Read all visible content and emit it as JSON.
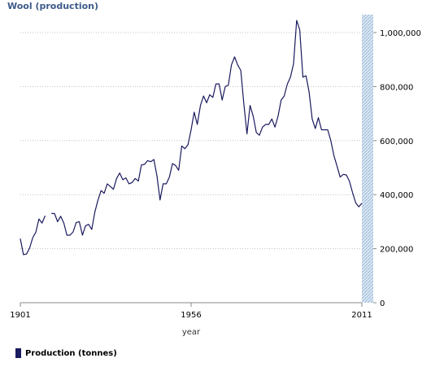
{
  "chart_data": {
    "type": "line",
    "title": "Wool (production)",
    "xlabel": "year",
    "ylabel": "",
    "x_tick_labels": [
      "1901",
      "1956",
      "2011"
    ],
    "y_tick_labels": [
      "0",
      "200,000",
      "400,000",
      "600,000",
      "800,000",
      "1,000,000"
    ],
    "xlim": [
      1901,
      2011
    ],
    "ylim": [
      0,
      1000000
    ],
    "grid": true,
    "legend_position": "bottom-left",
    "series": [
      {
        "name": "Production (tonnes)",
        "color": "#1a1a5e",
        "points": [
          [
            1901,
            237000
          ],
          [
            1902,
            178000
          ],
          [
            1903,
            180000
          ],
          [
            1904,
            203000
          ],
          [
            1905,
            241000
          ],
          [
            1906,
            261000
          ],
          [
            1907,
            310000
          ],
          [
            1908,
            295000
          ],
          [
            1909,
            322000
          ],
          [
            1911,
            330000
          ],
          [
            1912,
            330000
          ],
          [
            1913,
            300000
          ],
          [
            1914,
            320000
          ],
          [
            1915,
            295000
          ],
          [
            1916,
            250000
          ],
          [
            1917,
            250000
          ],
          [
            1918,
            262000
          ],
          [
            1919,
            297000
          ],
          [
            1920,
            300000
          ],
          [
            1921,
            250000
          ],
          [
            1922,
            285000
          ],
          [
            1923,
            290000
          ],
          [
            1924,
            271000
          ],
          [
            1925,
            335000
          ],
          [
            1926,
            380000
          ],
          [
            1927,
            415000
          ],
          [
            1928,
            405000
          ],
          [
            1929,
            440000
          ],
          [
            1930,
            430000
          ],
          [
            1931,
            420000
          ],
          [
            1932,
            460000
          ],
          [
            1933,
            480000
          ],
          [
            1934,
            455000
          ],
          [
            1935,
            462000
          ],
          [
            1936,
            440000
          ],
          [
            1937,
            445000
          ],
          [
            1938,
            460000
          ],
          [
            1939,
            450000
          ],
          [
            1940,
            510000
          ],
          [
            1941,
            512000
          ],
          [
            1942,
            526000
          ],
          [
            1943,
            522000
          ],
          [
            1944,
            530000
          ],
          [
            1945,
            470000
          ],
          [
            1946,
            380000
          ],
          [
            1947,
            440000
          ],
          [
            1948,
            440000
          ],
          [
            1949,
            465000
          ],
          [
            1950,
            515000
          ],
          [
            1951,
            508000
          ],
          [
            1952,
            490000
          ],
          [
            1953,
            580000
          ],
          [
            1954,
            570000
          ],
          [
            1955,
            585000
          ],
          [
            1956,
            640000
          ],
          [
            1957,
            705000
          ],
          [
            1958,
            660000
          ],
          [
            1959,
            730000
          ],
          [
            1960,
            765000
          ],
          [
            1961,
            740000
          ],
          [
            1962,
            770000
          ],
          [
            1963,
            760000
          ],
          [
            1964,
            810000
          ],
          [
            1965,
            810000
          ],
          [
            1966,
            750000
          ],
          [
            1967,
            800000
          ],
          [
            1968,
            805000
          ],
          [
            1969,
            880000
          ],
          [
            1970,
            910000
          ],
          [
            1971,
            880000
          ],
          [
            1972,
            860000
          ],
          [
            1973,
            735000
          ],
          [
            1974,
            625000
          ],
          [
            1975,
            730000
          ],
          [
            1976,
            690000
          ],
          [
            1977,
            630000
          ],
          [
            1978,
            620000
          ],
          [
            1979,
            650000
          ],
          [
            1980,
            660000
          ],
          [
            1981,
            660000
          ],
          [
            1982,
            680000
          ],
          [
            1983,
            650000
          ],
          [
            1984,
            690000
          ],
          [
            1985,
            750000
          ],
          [
            1986,
            765000
          ],
          [
            1987,
            810000
          ],
          [
            1988,
            835000
          ],
          [
            1989,
            885000
          ],
          [
            1990,
            1045000
          ],
          [
            1991,
            1010000
          ],
          [
            1992,
            835000
          ],
          [
            1993,
            840000
          ],
          [
            1994,
            780000
          ],
          [
            1995,
            680000
          ],
          [
            1996,
            645000
          ],
          [
            1997,
            685000
          ],
          [
            1998,
            640000
          ],
          [
            1999,
            640000
          ],
          [
            2000,
            640000
          ],
          [
            2001,
            600000
          ],
          [
            2002,
            545000
          ],
          [
            2003,
            505000
          ],
          [
            2004,
            465000
          ],
          [
            2005,
            475000
          ],
          [
            2006,
            473000
          ],
          [
            2007,
            450000
          ],
          [
            2008,
            408000
          ],
          [
            2009,
            370000
          ],
          [
            2010,
            355000
          ],
          [
            2011,
            368000
          ]
        ]
      }
    ]
  },
  "colors": {
    "line": "#1a1a5e",
    "grid": "#c0c0c0",
    "axis": "#999999",
    "yaxis_band": "#bcd2e8",
    "title": "#3d5a8a"
  }
}
